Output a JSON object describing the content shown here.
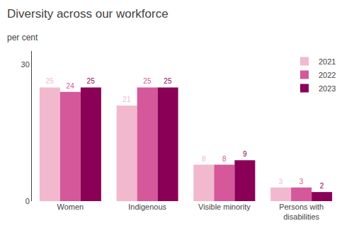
{
  "chart_data": {
    "type": "bar",
    "title": "Diversity across our workforce",
    "subtitle": "per cent",
    "categories": [
      "Women",
      "Indigenous",
      "Visible minority",
      "Persons with\ndisabilities"
    ],
    "series": [
      {
        "name": "2021",
        "color": "#f2b8ce",
        "values": [
          25,
          21,
          8,
          3
        ]
      },
      {
        "name": "2022",
        "color": "#d4589a",
        "values": [
          24,
          25,
          8,
          3
        ]
      },
      {
        "name": "2023",
        "color": "#8b0057",
        "values": [
          25,
          25,
          9,
          2
        ]
      }
    ],
    "ylim": [
      0,
      33
    ],
    "yticks": [
      0,
      30
    ],
    "grid": false,
    "legend": "upper right",
    "data_labels": true
  }
}
